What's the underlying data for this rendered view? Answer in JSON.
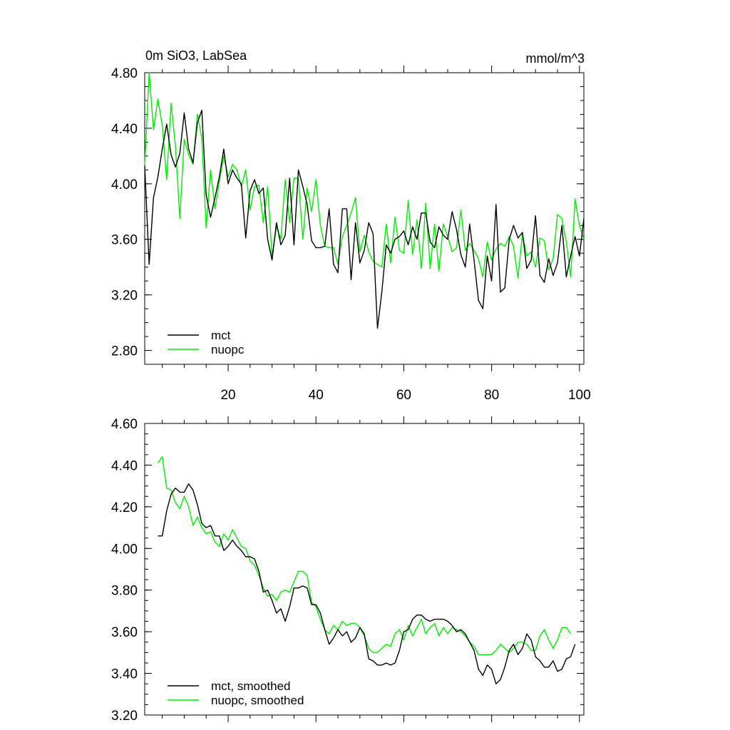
{
  "chart_data": [
    {
      "type": "line",
      "title_left": "0m SiO3, LabSea",
      "title_right": "mmol/m^3",
      "xlim": [
        1,
        101
      ],
      "ylim": [
        2.7,
        4.8
      ],
      "x_ticks": [
        20,
        40,
        60,
        80,
        100
      ],
      "x_ticklabels": [
        "20",
        "40",
        "60",
        "80",
        "100"
      ],
      "y_ticks": [
        2.8,
        3.2,
        3.6,
        4.0,
        4.4,
        4.8
      ],
      "y_ticklabels": [
        "2.80",
        "3.20",
        "3.60",
        "4.00",
        "4.40",
        "4.80"
      ],
      "legend_position": "bottom-left",
      "series": [
        {
          "name": "mct",
          "color": "#000000",
          "values": [
            4.13,
            3.42,
            3.9,
            4.05,
            4.25,
            4.43,
            4.21,
            4.12,
            4.22,
            4.51,
            4.25,
            4.15,
            4.44,
            4.53,
            3.92,
            3.76,
            3.9,
            4.05,
            4.25,
            4.0,
            4.1,
            4.04,
            4.0,
            3.61,
            3.95,
            4.03,
            3.93,
            3.97,
            3.6,
            3.45,
            3.72,
            3.56,
            3.63,
            4.04,
            3.56,
            4.1,
            3.98,
            3.85,
            3.59,
            3.54,
            3.54,
            3.55,
            3.82,
            3.42,
            3.36,
            3.82,
            3.82,
            3.31,
            3.72,
            3.43,
            3.52,
            3.72,
            3.64,
            2.96,
            3.22,
            3.56,
            3.5,
            3.6,
            3.62,
            3.66,
            3.56,
            3.69,
            3.6,
            3.79,
            3.79,
            3.58,
            3.54,
            3.69,
            3.63,
            3.6,
            3.8,
            3.67,
            3.49,
            3.4,
            3.71,
            3.45,
            3.16,
            3.1,
            3.48,
            3.3,
            3.85,
            3.22,
            3.25,
            3.6,
            3.7,
            3.61,
            3.65,
            3.39,
            3.45,
            3.77,
            3.34,
            3.29,
            3.46,
            3.34,
            3.43,
            3.7,
            3.33,
            3.48,
            3.62,
            3.48,
            3.75
          ]
        },
        {
          "name": "nuopc",
          "color": "#00ee00",
          "values": [
            4.13,
            4.8,
            4.39,
            4.61,
            4.42,
            4.03,
            4.58,
            4.27,
            3.75,
            4.32,
            4.21,
            4.14,
            4.5,
            4.33,
            3.68,
            4.1,
            3.82,
            4.02,
            4.2,
            4.05,
            4.14,
            4.1,
            3.98,
            4.1,
            3.81,
            3.98,
            3.99,
            3.72,
            3.98,
            3.48,
            3.69,
            3.6,
            4.03,
            3.72,
            4.04,
            4.04,
            3.6,
            3.97,
            3.8,
            4.03,
            3.7,
            3.55,
            3.54,
            3.54,
            3.42,
            3.62,
            3.7,
            3.79,
            3.9,
            3.51,
            3.63,
            3.51,
            3.44,
            3.42,
            3.4,
            3.71,
            3.43,
            3.76,
            3.52,
            3.5,
            3.88,
            3.49,
            3.74,
            3.39,
            3.86,
            3.39,
            3.71,
            3.37,
            3.71,
            3.62,
            3.51,
            3.54,
            3.81,
            3.52,
            3.57,
            3.52,
            3.46,
            3.33,
            3.58,
            3.45,
            3.53,
            3.57,
            3.55,
            3.62,
            3.55,
            3.32,
            3.64,
            3.48,
            3.51,
            3.4,
            3.61,
            3.59,
            3.38,
            3.46,
            3.78,
            3.75,
            3.58,
            3.33,
            3.89,
            3.7,
            3.6
          ]
        }
      ]
    },
    {
      "type": "line",
      "xlim": [
        1,
        101
      ],
      "ylim": [
        3.2,
        4.6
      ],
      "x_ticks": [
        20,
        40,
        60,
        80,
        100
      ],
      "y_ticks": [
        3.2,
        3.4,
        3.6,
        3.8,
        4.0,
        4.2,
        4.4,
        4.6
      ],
      "y_ticklabels": [
        "3.20",
        "3.40",
        "3.60",
        "3.80",
        "4.00",
        "4.20",
        "4.40",
        "4.60"
      ],
      "legend_position": "bottom-left",
      "series": [
        {
          "name": "mct, smoothed",
          "color": "#000000",
          "x_start": 4,
          "values": [
            4.06,
            4.06,
            4.18,
            4.26,
            4.29,
            4.27,
            4.27,
            4.31,
            4.28,
            4.21,
            4.12,
            4.1,
            4.11,
            4.06,
            4.06,
            3.99,
            4.01,
            4.04,
            4.01,
            3.99,
            3.96,
            3.96,
            3.95,
            3.89,
            3.79,
            3.8,
            3.75,
            3.69,
            3.71,
            3.65,
            3.72,
            3.81,
            3.81,
            3.82,
            3.81,
            3.73,
            3.73,
            3.69,
            3.61,
            3.54,
            3.57,
            3.61,
            3.58,
            3.6,
            3.55,
            3.57,
            3.62,
            3.59,
            3.47,
            3.46,
            3.44,
            3.44,
            3.45,
            3.44,
            3.45,
            3.51,
            3.6,
            3.61,
            3.66,
            3.68,
            3.68,
            3.66,
            3.65,
            3.66,
            3.66,
            3.66,
            3.65,
            3.63,
            3.6,
            3.61,
            3.59,
            3.55,
            3.51,
            3.42,
            3.39,
            3.44,
            3.42,
            3.35,
            3.37,
            3.43,
            3.51,
            3.54,
            3.49,
            3.52,
            3.59,
            3.56,
            3.48,
            3.46,
            3.43,
            3.43,
            3.46,
            3.41,
            3.42,
            3.47,
            3.48,
            3.54
          ]
        },
        {
          "name": "nuopc, smoothed",
          "color": "#00ee00",
          "x_start": 4,
          "values": [
            4.41,
            4.44,
            4.29,
            4.28,
            4.22,
            4.19,
            4.25,
            4.2,
            4.11,
            4.15,
            4.1,
            4.07,
            4.08,
            4.03,
            4.01,
            4.07,
            4.04,
            4.09,
            4.05,
            4.01,
            4.0,
            3.94,
            3.92,
            3.87,
            3.81,
            3.77,
            3.78,
            3.75,
            3.79,
            3.8,
            3.79,
            3.84,
            3.89,
            3.89,
            3.87,
            3.74,
            3.72,
            3.66,
            3.61,
            3.59,
            3.63,
            3.61,
            3.65,
            3.63,
            3.64,
            3.64,
            3.62,
            3.58,
            3.52,
            3.5,
            3.5,
            3.52,
            3.54,
            3.53,
            3.59,
            3.61,
            3.56,
            3.63,
            3.58,
            3.62,
            3.66,
            3.59,
            3.62,
            3.64,
            3.58,
            3.62,
            3.59,
            3.62,
            3.61,
            3.6,
            3.58,
            3.55,
            3.53,
            3.49,
            3.49,
            3.49,
            3.49,
            3.51,
            3.54,
            3.52,
            3.5,
            3.52,
            3.55,
            3.55,
            3.54,
            3.51,
            3.51,
            3.58,
            3.61,
            3.56,
            3.52,
            3.56,
            3.62,
            3.62,
            3.59
          ]
        }
      ]
    }
  ]
}
